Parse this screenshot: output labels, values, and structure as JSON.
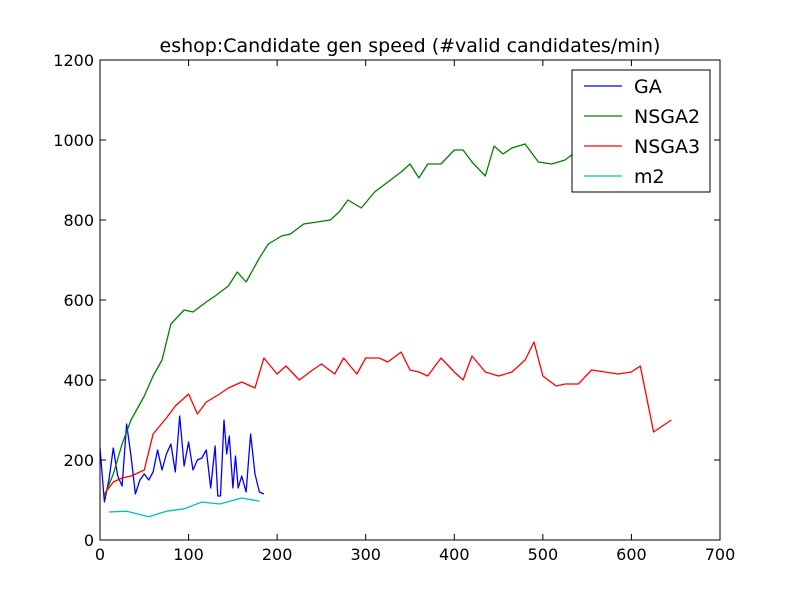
{
  "chart_data": {
    "type": "line",
    "title": "eshop:Candidate gen speed (#valid candidates/min)",
    "xlabel": "",
    "ylabel": "",
    "xlim": [
      0,
      700
    ],
    "ylim": [
      0,
      1200
    ],
    "xticks": [
      0,
      100,
      200,
      300,
      400,
      500,
      600,
      700
    ],
    "yticks": [
      0,
      200,
      400,
      600,
      800,
      1000,
      1200
    ],
    "grid": false,
    "legend_position": "top-right",
    "series": [
      {
        "name": "GA",
        "color": "#0000ff",
        "points": [
          [
            0,
            230
          ],
          [
            5,
            95
          ],
          [
            10,
            150
          ],
          [
            15,
            230
          ],
          [
            20,
            160
          ],
          [
            25,
            135
          ],
          [
            30,
            290
          ],
          [
            35,
            210
          ],
          [
            40,
            115
          ],
          [
            45,
            150
          ],
          [
            50,
            165
          ],
          [
            55,
            150
          ],
          [
            60,
            170
          ],
          [
            65,
            225
          ],
          [
            70,
            175
          ],
          [
            75,
            215
          ],
          [
            80,
            240
          ],
          [
            85,
            170
          ],
          [
            90,
            310
          ],
          [
            95,
            185
          ],
          [
            100,
            245
          ],
          [
            105,
            175
          ],
          [
            110,
            200
          ],
          [
            115,
            205
          ],
          [
            120,
            225
          ],
          [
            125,
            130
          ],
          [
            130,
            235
          ],
          [
            133,
            110
          ],
          [
            136,
            110
          ],
          [
            140,
            300
          ],
          [
            143,
            215
          ],
          [
            146,
            260
          ],
          [
            150,
            130
          ],
          [
            153,
            210
          ],
          [
            156,
            130
          ],
          [
            160,
            160
          ],
          [
            165,
            120
          ],
          [
            170,
            265
          ],
          [
            175,
            165
          ],
          [
            180,
            120
          ],
          [
            185,
            115
          ]
        ]
      },
      {
        "name": "NSGA2",
        "color": "#008000",
        "points": [
          [
            5,
            110
          ],
          [
            15,
            165
          ],
          [
            25,
            240
          ],
          [
            35,
            300
          ],
          [
            50,
            360
          ],
          [
            60,
            410
          ],
          [
            70,
            450
          ],
          [
            80,
            540
          ],
          [
            95,
            575
          ],
          [
            105,
            570
          ],
          [
            120,
            595
          ],
          [
            130,
            610
          ],
          [
            145,
            635
          ],
          [
            155,
            670
          ],
          [
            165,
            645
          ],
          [
            180,
            705
          ],
          [
            190,
            740
          ],
          [
            205,
            760
          ],
          [
            215,
            765
          ],
          [
            230,
            790
          ],
          [
            245,
            795
          ],
          [
            260,
            800
          ],
          [
            270,
            820
          ],
          [
            280,
            850
          ],
          [
            295,
            830
          ],
          [
            310,
            870
          ],
          [
            325,
            895
          ],
          [
            340,
            920
          ],
          [
            350,
            940
          ],
          [
            360,
            905
          ],
          [
            370,
            940
          ],
          [
            385,
            940
          ],
          [
            400,
            975
          ],
          [
            410,
            975
          ],
          [
            420,
            945
          ],
          [
            435,
            910
          ],
          [
            445,
            985
          ],
          [
            455,
            965
          ],
          [
            465,
            980
          ],
          [
            480,
            990
          ],
          [
            495,
            945
          ],
          [
            510,
            940
          ],
          [
            525,
            950
          ],
          [
            540,
            975
          ]
        ]
      },
      {
        "name": "NSGA3",
        "color": "#ff0000",
        "points": [
          [
            5,
            115
          ],
          [
            15,
            145
          ],
          [
            25,
            155
          ],
          [
            35,
            160
          ],
          [
            50,
            175
          ],
          [
            60,
            265
          ],
          [
            75,
            305
          ],
          [
            85,
            335
          ],
          [
            100,
            365
          ],
          [
            110,
            315
          ],
          [
            120,
            345
          ],
          [
            135,
            365
          ],
          [
            145,
            380
          ],
          [
            160,
            395
          ],
          [
            175,
            380
          ],
          [
            185,
            455
          ],
          [
            200,
            415
          ],
          [
            210,
            435
          ],
          [
            225,
            400
          ],
          [
            240,
            425
          ],
          [
            250,
            440
          ],
          [
            265,
            415
          ],
          [
            275,
            455
          ],
          [
            290,
            415
          ],
          [
            300,
            455
          ],
          [
            315,
            455
          ],
          [
            325,
            445
          ],
          [
            340,
            470
          ],
          [
            350,
            425
          ],
          [
            360,
            420
          ],
          [
            370,
            410
          ],
          [
            385,
            455
          ],
          [
            400,
            420
          ],
          [
            410,
            400
          ],
          [
            420,
            460
          ],
          [
            435,
            420
          ],
          [
            450,
            410
          ],
          [
            465,
            420
          ],
          [
            480,
            450
          ],
          [
            490,
            495
          ],
          [
            500,
            410
          ],
          [
            515,
            385
          ],
          [
            525,
            390
          ],
          [
            540,
            390
          ],
          [
            555,
            425
          ],
          [
            570,
            420
          ],
          [
            585,
            415
          ],
          [
            600,
            420
          ],
          [
            610,
            435
          ],
          [
            625,
            270
          ],
          [
            645,
            300
          ]
        ]
      },
      {
        "name": "m2",
        "color": "#00bfbf",
        "points": [
          [
            10,
            70
          ],
          [
            30,
            72
          ],
          [
            55,
            58
          ],
          [
            75,
            72
          ],
          [
            95,
            78
          ],
          [
            115,
            95
          ],
          [
            135,
            90
          ],
          [
            160,
            105
          ],
          [
            180,
            97
          ]
        ]
      }
    ]
  }
}
